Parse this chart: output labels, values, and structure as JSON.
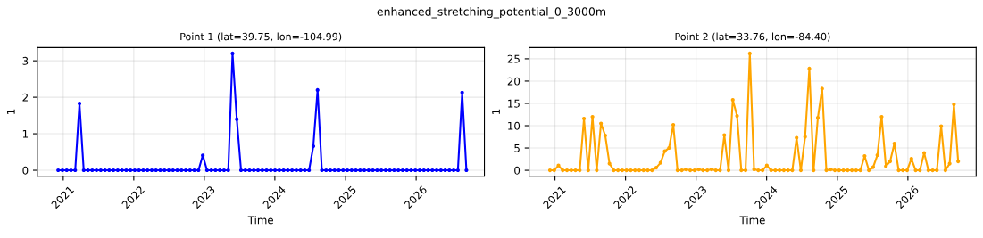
{
  "chart_data": [
    {
      "type": "line",
      "title": "Point 1 (lat=39.75, lon=-104.99)",
      "annotations": [
        "enhanced_stretching_potential_0_3000m"
      ],
      "xlabel": "Time",
      "ylabel": "1",
      "marker": "circle",
      "grid": true,
      "legend": false,
      "x": [
        "2020-12-06",
        "2020-12-28",
        "2021-01-19",
        "2021-02-10",
        "2021-03-04",
        "2021-03-26",
        "2021-04-17",
        "2021-05-09",
        "2021-05-31",
        "2021-06-22",
        "2021-07-14",
        "2021-08-05",
        "2021-08-27",
        "2021-09-18",
        "2021-10-10",
        "2021-11-01",
        "2021-11-23",
        "2021-12-15",
        "2022-01-06",
        "2022-01-28",
        "2022-02-19",
        "2022-03-13",
        "2022-04-04",
        "2022-04-26",
        "2022-05-18",
        "2022-06-09",
        "2022-07-01",
        "2022-07-23",
        "2022-08-14",
        "2022-09-05",
        "2022-09-27",
        "2022-10-19",
        "2022-11-10",
        "2022-12-02",
        "2022-12-24",
        "2023-01-15",
        "2023-02-06",
        "2023-02-28",
        "2023-03-22",
        "2023-04-13",
        "2023-05-05",
        "2023-05-27",
        "2023-06-18",
        "2023-07-10",
        "2023-08-01",
        "2023-08-23",
        "2023-09-14",
        "2023-10-06",
        "2023-10-28",
        "2023-11-19",
        "2023-12-11",
        "2024-01-02",
        "2024-01-24",
        "2024-02-15",
        "2024-03-08",
        "2024-03-30",
        "2024-04-21",
        "2024-05-13",
        "2024-06-04",
        "2024-06-26",
        "2024-07-18",
        "2024-08-09",
        "2024-08-31",
        "2024-09-22",
        "2024-10-14",
        "2024-11-05",
        "2024-11-27",
        "2024-12-19",
        "2025-01-10",
        "2025-02-01",
        "2025-02-23",
        "2025-03-17",
        "2025-04-08",
        "2025-04-30",
        "2025-05-22",
        "2025-06-13",
        "2025-07-05",
        "2025-07-27",
        "2025-08-18",
        "2025-09-09",
        "2025-10-01",
        "2025-10-23",
        "2025-11-14",
        "2025-12-06",
        "2025-12-28",
        "2026-01-19",
        "2026-02-10",
        "2026-03-04",
        "2026-03-26",
        "2026-04-17",
        "2026-05-09",
        "2026-05-31",
        "2026-06-22",
        "2026-07-14",
        "2026-08-05",
        "2026-08-27",
        "2026-09-18"
      ],
      "series": [
        {
          "color": "#0000ff",
          "values": [
            0,
            0,
            0,
            0,
            0,
            1.83,
            0,
            0,
            0,
            0,
            0,
            0,
            0,
            0,
            0,
            0,
            0,
            0,
            0,
            0,
            0,
            0,
            0,
            0,
            0,
            0,
            0,
            0,
            0,
            0,
            0,
            0,
            0,
            0,
            0.41,
            0,
            0,
            0,
            0,
            0,
            0,
            3.2,
            1.4,
            0,
            0,
            0,
            0,
            0,
            0,
            0,
            0,
            0,
            0,
            0,
            0,
            0,
            0,
            0,
            0,
            0,
            0.66,
            2.2,
            0,
            0,
            0,
            0,
            0,
            0,
            0,
            0,
            0,
            0,
            0,
            0,
            0,
            0,
            0,
            0,
            0,
            0,
            0,
            0,
            0,
            0,
            0,
            0,
            0,
            0,
            0,
            0,
            0,
            0,
            0,
            0,
            0,
            2.13,
            0
          ]
        }
      ],
      "xlim": [
        "2020-08-20",
        "2026-12-20"
      ],
      "xticks": [
        {
          "value": "2021-01-01",
          "label": "2021"
        },
        {
          "value": "2022-01-01",
          "label": "2022"
        },
        {
          "value": "2023-01-01",
          "label": "2023"
        },
        {
          "value": "2024-01-01",
          "label": "2024"
        },
        {
          "value": "2025-01-01",
          "label": "2025"
        },
        {
          "value": "2026-01-01",
          "label": "2026"
        }
      ],
      "ylim": [
        -0.16,
        3.36
      ],
      "yticks": [
        0,
        1,
        2,
        3
      ]
    },
    {
      "type": "line",
      "title": "Point 2 (lat=33.76, lon=-84.40)",
      "xlabel": "Time",
      "ylabel": "1",
      "marker": "circle",
      "grid": true,
      "legend": false,
      "x": [
        "2020-12-06",
        "2020-12-28",
        "2021-01-19",
        "2021-02-10",
        "2021-03-04",
        "2021-03-26",
        "2021-04-17",
        "2021-05-09",
        "2021-05-31",
        "2021-06-22",
        "2021-07-14",
        "2021-08-05",
        "2021-08-27",
        "2021-09-18",
        "2021-10-10",
        "2021-11-01",
        "2021-11-23",
        "2021-12-15",
        "2022-01-06",
        "2022-01-28",
        "2022-02-19",
        "2022-03-13",
        "2022-04-04",
        "2022-04-26",
        "2022-05-18",
        "2022-06-09",
        "2022-07-01",
        "2022-07-23",
        "2022-08-14",
        "2022-09-05",
        "2022-09-27",
        "2022-10-19",
        "2022-11-10",
        "2022-12-02",
        "2022-12-24",
        "2023-01-15",
        "2023-02-06",
        "2023-02-28",
        "2023-03-22",
        "2023-04-13",
        "2023-05-05",
        "2023-05-27",
        "2023-06-18",
        "2023-07-10",
        "2023-08-01",
        "2023-08-23",
        "2023-09-14",
        "2023-10-06",
        "2023-10-28",
        "2023-11-19",
        "2023-12-11",
        "2024-01-02",
        "2024-01-24",
        "2024-02-15",
        "2024-03-08",
        "2024-03-30",
        "2024-04-21",
        "2024-05-13",
        "2024-06-04",
        "2024-06-26",
        "2024-07-18",
        "2024-08-09",
        "2024-08-31",
        "2024-09-22",
        "2024-10-14",
        "2024-11-05",
        "2024-11-27",
        "2024-12-19",
        "2025-01-10",
        "2025-02-01",
        "2025-02-23",
        "2025-03-17",
        "2025-04-08",
        "2025-04-30",
        "2025-05-22",
        "2025-06-13",
        "2025-07-05",
        "2025-07-27",
        "2025-08-18",
        "2025-09-09",
        "2025-10-01",
        "2025-10-23",
        "2025-11-14",
        "2025-12-06",
        "2025-12-28",
        "2026-01-19",
        "2026-02-10",
        "2026-03-04",
        "2026-03-26",
        "2026-04-17",
        "2026-05-09",
        "2026-05-31",
        "2026-06-22",
        "2026-07-14",
        "2026-08-05",
        "2026-08-27",
        "2026-09-18"
      ],
      "series": [
        {
          "color": "#ffa500",
          "values": [
            0,
            0,
            1.1,
            0,
            0,
            0,
            0,
            0,
            11.6,
            0,
            12.0,
            0,
            10.5,
            7.8,
            1.5,
            0,
            0,
            0,
            0,
            0,
            0,
            0,
            0,
            0,
            0,
            0.6,
            1.7,
            4.3,
            5.0,
            10.2,
            0,
            0,
            0.2,
            0,
            0,
            0.2,
            0,
            0,
            0.2,
            0,
            0,
            7.9,
            0,
            15.8,
            12.2,
            0,
            0,
            26.2,
            0.2,
            0,
            0,
            1.1,
            0,
            0,
            0,
            0,
            0,
            0,
            7.3,
            0,
            7.5,
            22.8,
            0,
            11.8,
            18.3,
            0,
            0.2,
            0,
            0,
            0,
            0,
            0,
            0,
            0,
            3.2,
            0,
            0.7,
            3.4,
            12.0,
            0.9,
            2.0,
            6.0,
            0,
            0,
            0,
            2.6,
            0,
            0,
            3.9,
            0,
            0,
            0,
            9.9,
            0,
            1.5,
            14.8,
            2.0
          ]
        }
      ],
      "xlim": [
        "2020-08-20",
        "2026-12-20"
      ],
      "xticks": [
        {
          "value": "2021-01-01",
          "label": "2021"
        },
        {
          "value": "2022-01-01",
          "label": "2022"
        },
        {
          "value": "2023-01-01",
          "label": "2023"
        },
        {
          "value": "2024-01-01",
          "label": "2024"
        },
        {
          "value": "2025-01-01",
          "label": "2025"
        },
        {
          "value": "2026-01-01",
          "label": "2026"
        }
      ],
      "ylim": [
        -1.3,
        27.5
      ],
      "yticks": [
        0,
        5,
        10,
        15,
        20,
        25
      ]
    }
  ]
}
